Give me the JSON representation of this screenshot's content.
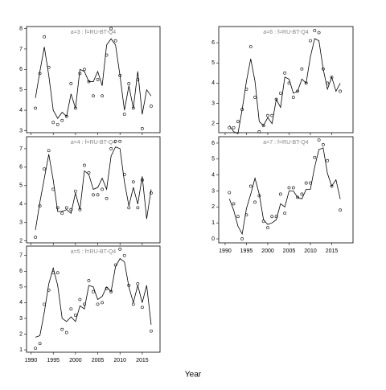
{
  "chart_data": {
    "type": "panels",
    "xlabel": "Year",
    "panels": [
      {
        "type": "line",
        "title": "a=3 : f=RU-BT-Q4",
        "xlim": [
          1989,
          2019
        ],
        "ylim": [
          2.9,
          8.1
        ],
        "xticks": [
          1990,
          1995,
          2000,
          2005,
          2010,
          2015
        ],
        "yticks": [
          3,
          4,
          5,
          6,
          7,
          8
        ],
        "x": [
          1991,
          1992,
          1993,
          1994,
          1995,
          1996,
          1997,
          1998,
          1999,
          2000,
          2001,
          2002,
          2003,
          2004,
          2005,
          2006,
          2007,
          2008,
          2009,
          2010,
          2011,
          2012,
          2013,
          2014,
          2015,
          2016,
          2017
        ],
        "series": [
          {
            "style": "line",
            "color": "#000000",
            "values": [
              4.6,
              5.9,
              7.1,
              5.7,
              4.0,
              3.6,
              3.9,
              3.7,
              4.8,
              4.1,
              6.0,
              5.9,
              5.4,
              5.4,
              5.9,
              5.2,
              7.2,
              7.5,
              7.2,
              5.7,
              4.0,
              5.2,
              4.1,
              5.9,
              3.8,
              5.0,
              4.7
            ]
          },
          {
            "style": "points",
            "color": "#000000",
            "values": [
              4.1,
              5.8,
              7.6,
              6.1,
              3.4,
              3.3,
              3.5,
              3.7,
              5.3,
              4.1,
              5.8,
              6.0,
              5.4,
              4.7,
              5.5,
              4.7,
              6.7,
              8.0,
              7.4,
              5.7,
              3.8,
              5.3,
              4.1,
              5.5,
              3.1,
              null,
              4.2
            ]
          }
        ]
      },
      {
        "type": "line",
        "title": "a=4 : f=RU-BT-Q4",
        "xlim": [
          1989,
          2019
        ],
        "ylim": [
          1.9,
          7.65
        ],
        "xticks": [
          1990,
          1995,
          2000,
          2005,
          2010,
          2015
        ],
        "yticks": [
          2,
          3,
          4,
          5,
          6,
          7
        ],
        "x": [
          1991,
          1992,
          1993,
          1994,
          1995,
          1996,
          1997,
          1998,
          1999,
          2000,
          2001,
          2002,
          2003,
          2004,
          2005,
          2006,
          2007,
          2008,
          2009,
          2010,
          2011,
          2012,
          2013,
          2014,
          2015,
          2016,
          2017
        ],
        "series": [
          {
            "style": "line",
            "color": "#000000",
            "values": [
              2.6,
              4.1,
              5.4,
              6.7,
              5.3,
              3.6,
              3.6,
              3.7,
              3.5,
              4.6,
              3.7,
              5.8,
              5.6,
              4.8,
              4.9,
              5.4,
              4.8,
              6.6,
              7.1,
              7.0,
              5.2,
              3.9,
              4.9,
              4.0,
              5.5,
              3.2,
              4.8
            ]
          },
          {
            "style": "points",
            "color": "#000000",
            "values": [
              2.2,
              3.9,
              5.9,
              6.9,
              4.8,
              3.8,
              3.5,
              3.8,
              3.7,
              4.7,
              3.7,
              6.1,
              5.7,
              4.5,
              4.5,
              4.8,
              4.3,
              7.0,
              7.4,
              7.4,
              5.6,
              3.8,
              5.2,
              3.8,
              5.3,
              null,
              4.6
            ]
          }
        ]
      },
      {
        "type": "line",
        "title": "a=5 : f=RU-BT-Q4",
        "xlim": [
          1989,
          2019
        ],
        "ylim": [
          0.85,
          7.6
        ],
        "xticks": [
          1990,
          1995,
          2000,
          2005,
          2010,
          2015
        ],
        "yticks": [
          1,
          2,
          3,
          4,
          5,
          6,
          7
        ],
        "x": [
          1991,
          1992,
          1993,
          1994,
          1995,
          1996,
          1997,
          1998,
          1999,
          2000,
          2001,
          2002,
          2003,
          2004,
          2005,
          2006,
          2007,
          2008,
          2009,
          2010,
          2011,
          2012,
          2013,
          2014,
          2015,
          2016,
          2017
        ],
        "series": [
          {
            "style": "line",
            "color": "#000000",
            "values": [
              1.8,
              1.9,
              3.4,
              5.2,
              6.2,
              5.1,
              3.0,
              2.8,
              3.1,
              2.8,
              3.8,
              3.6,
              5.1,
              5.0,
              4.2,
              4.4,
              5.0,
              4.7,
              6.3,
              6.8,
              6.6,
              5.0,
              4.0,
              5.1,
              4.0,
              5.1,
              2.6
            ]
          },
          {
            "style": "points",
            "color": "#000000",
            "values": [
              1.1,
              1.4,
              3.9,
              4.8,
              5.9,
              5.9,
              2.3,
              2.1,
              3.6,
              3.2,
              4.2,
              3.9,
              5.4,
              4.7,
              3.9,
              4.0,
              4.9,
              4.7,
              6.4,
              7.4,
              7.0,
              5.1,
              3.9,
              5.2,
              3.7,
              null,
              2.2
            ]
          }
        ]
      },
      {
        "type": "line",
        "title": "a=6 : f=RU-BT-Q4",
        "xlim": [
          1988.5,
          2020
        ],
        "ylim": [
          1.55,
          6.8
        ],
        "xticks": [
          1990,
          1995,
          2000,
          2005,
          2010,
          2015
        ],
        "yticks": [
          2,
          3,
          4,
          5,
          6
        ],
        "x": [
          1991,
          1992,
          1993,
          1994,
          1995,
          1996,
          1997,
          1998,
          1999,
          2000,
          2001,
          2002,
          2003,
          2004,
          2005,
          2006,
          2007,
          2008,
          2009,
          2010,
          2011,
          2012,
          2013,
          2014,
          2015,
          2016,
          2017
        ],
        "series": [
          {
            "style": "line",
            "color": "#000000",
            "values": [
              1.9,
              1.6,
              1.5,
              2.7,
              4.1,
              5.2,
              4.1,
              2.1,
              1.9,
              2.3,
              2.0,
              3.2,
              2.8,
              4.3,
              4.2,
              3.5,
              3.6,
              4.2,
              4.0,
              5.3,
              6.2,
              6.1,
              4.7,
              3.7,
              4.3,
              3.6,
              4.0
            ]
          },
          {
            "style": "points",
            "color": "#000000",
            "values": [
              1.8,
              1.8,
              2.1,
              2.7,
              3.7,
              5.8,
              3.3,
              1.6,
              1.9,
              2.4,
              2.4,
              3.2,
              3.5,
              4.5,
              4.0,
              3.3,
              3.6,
              4.7,
              4.0,
              6.1,
              6.6,
              6.5,
              4.7,
              4.0,
              4.3,
              null,
              3.6
            ]
          }
        ]
      },
      {
        "type": "line",
        "title": "a=7 : f=RU-BT-Q4",
        "xlim": [
          1988.5,
          2020
        ],
        "ylim": [
          -0.25,
          6.4
        ],
        "xticks": [
          1990,
          1995,
          2000,
          2005,
          2010,
          2015
        ],
        "yticks": [
          0,
          1,
          2,
          3,
          4,
          5,
          6
        ],
        "x": [
          1991,
          1992,
          1993,
          1994,
          1995,
          1996,
          1997,
          1998,
          1999,
          2000,
          2001,
          2002,
          2003,
          2004,
          2005,
          2006,
          2007,
          2008,
          2009,
          2010,
          2011,
          2012,
          2013,
          2014,
          2015,
          2016,
          2017
        ],
        "series": [
          {
            "style": "line",
            "color": "#000000",
            "values": [
              2.5,
              1.8,
              0.8,
              0.3,
              1.9,
              2.8,
              3.8,
              2.8,
              1.2,
              0.9,
              1.0,
              1.2,
              2.2,
              2.0,
              3.0,
              3.0,
              2.6,
              2.5,
              3.1,
              3.1,
              4.5,
              5.6,
              5.7,
              4.1,
              3.3,
              3.7,
              2.5
            ]
          },
          {
            "style": "points",
            "color": "#000000",
            "values": [
              2.9,
              2.2,
              1.4,
              0.0,
              1.5,
              3.3,
              2.3,
              2.7,
              1.1,
              0.7,
              1.4,
              1.4,
              2.8,
              1.6,
              3.2,
              3.2,
              2.6,
              2.8,
              3.5,
              3.5,
              5.1,
              6.2,
              5.9,
              4.9,
              3.3,
              null,
              1.8
            ]
          }
        ]
      }
    ]
  }
}
